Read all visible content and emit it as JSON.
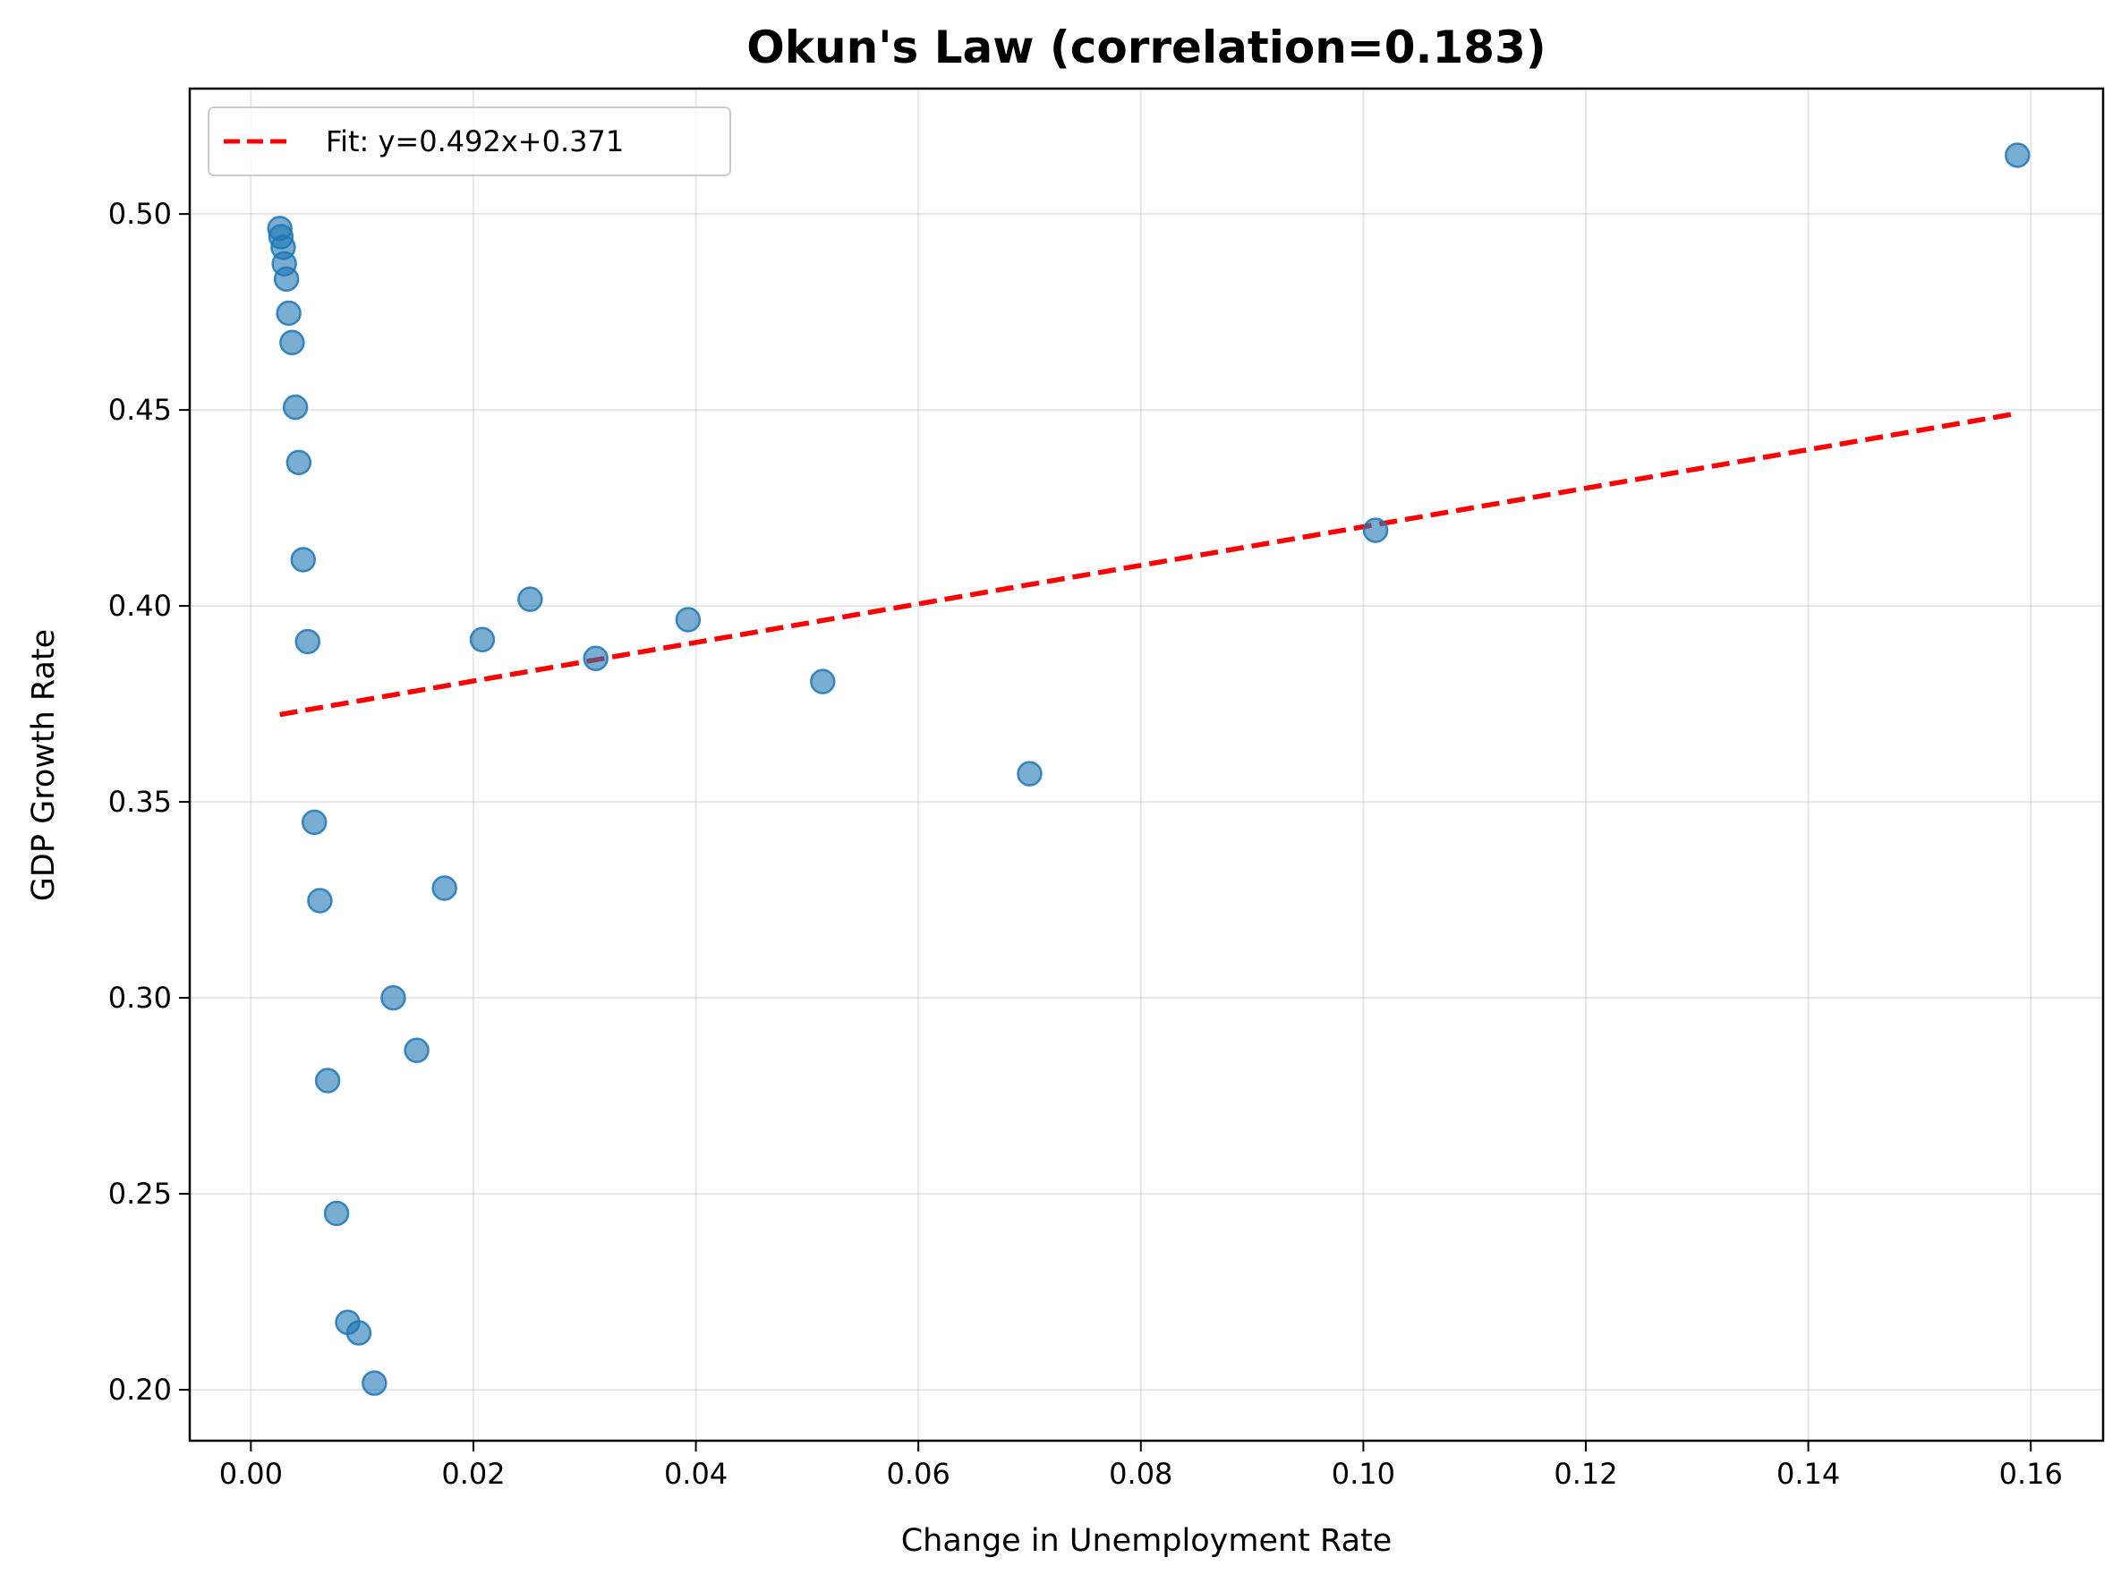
{
  "chart_data": {
    "type": "scatter",
    "title": "Okun's Law (correlation=0.183)",
    "xlabel": "Change in Unemployment Rate",
    "ylabel": "GDP Growth Rate",
    "xlim": [
      -0.0055,
      0.1665
    ],
    "ylim": [
      0.187,
      0.532
    ],
    "xticks": [
      0.0,
      0.02,
      0.04,
      0.06,
      0.08,
      0.1,
      0.12,
      0.14,
      0.16
    ],
    "xtick_labels": [
      "0.00",
      "0.02",
      "0.04",
      "0.06",
      "0.08",
      "0.10",
      "0.12",
      "0.14",
      "0.16"
    ],
    "yticks": [
      0.2,
      0.25,
      0.3,
      0.35,
      0.4,
      0.45,
      0.5
    ],
    "ytick_labels": [
      "0.20",
      "0.25",
      "0.30",
      "0.35",
      "0.40",
      "0.45",
      "0.50"
    ],
    "grid": true,
    "legend_position": "top-left",
    "point_color": "#1f77b4",
    "fit_color": "#ff0000",
    "points": [
      {
        "x": 0.0026,
        "y": 0.4963
      },
      {
        "x": 0.0027,
        "y": 0.4942
      },
      {
        "x": 0.0029,
        "y": 0.4915
      },
      {
        "x": 0.003,
        "y": 0.4873
      },
      {
        "x": 0.0032,
        "y": 0.4834
      },
      {
        "x": 0.0034,
        "y": 0.4747
      },
      {
        "x": 0.0037,
        "y": 0.4672
      },
      {
        "x": 0.004,
        "y": 0.4507
      },
      {
        "x": 0.0043,
        "y": 0.4366
      },
      {
        "x": 0.0047,
        "y": 0.4118
      },
      {
        "x": 0.0051,
        "y": 0.3909
      },
      {
        "x": 0.0057,
        "y": 0.3448
      },
      {
        "x": 0.0062,
        "y": 0.3248
      },
      {
        "x": 0.0069,
        "y": 0.2789
      },
      {
        "x": 0.0077,
        "y": 0.245
      },
      {
        "x": 0.0087,
        "y": 0.2172
      },
      {
        "x": 0.0097,
        "y": 0.2145
      },
      {
        "x": 0.0111,
        "y": 0.2017
      },
      {
        "x": 0.0128,
        "y": 0.3
      },
      {
        "x": 0.0149,
        "y": 0.2866
      },
      {
        "x": 0.0174,
        "y": 0.328
      },
      {
        "x": 0.0208,
        "y": 0.3914
      },
      {
        "x": 0.0251,
        "y": 0.4017
      },
      {
        "x": 0.031,
        "y": 0.3866
      },
      {
        "x": 0.0393,
        "y": 0.3965
      },
      {
        "x": 0.0514,
        "y": 0.3807
      },
      {
        "x": 0.07,
        "y": 0.3572
      },
      {
        "x": 0.1011,
        "y": 0.4193
      },
      {
        "x": 0.1588,
        "y": 0.515
      }
    ],
    "fit": {
      "label": "Fit: y=0.492x+0.371",
      "slope": 0.492,
      "intercept": 0.371,
      "x_range": [
        0.0026,
        0.1588
      ]
    }
  }
}
